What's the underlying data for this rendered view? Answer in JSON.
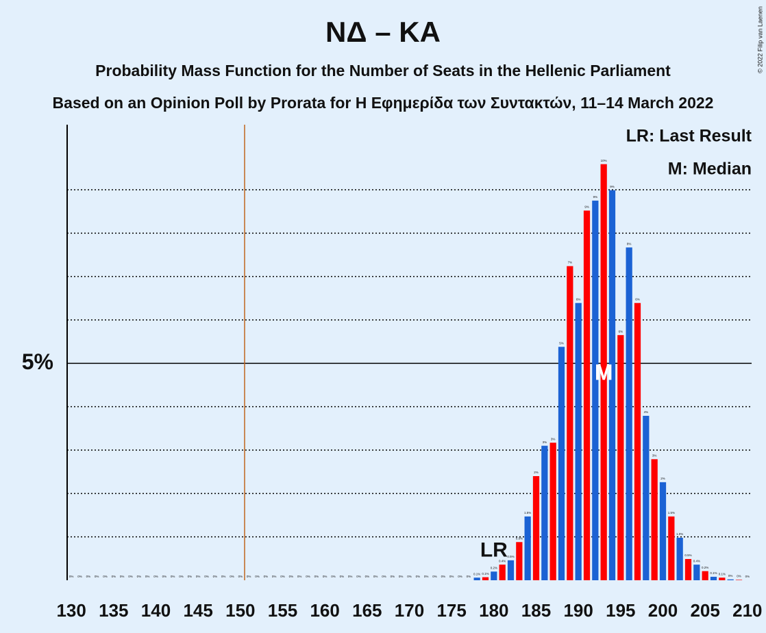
{
  "chart_data": {
    "type": "bar",
    "title": "ΝΔ – ΚΑ",
    "subtitle": "Probability Mass Function for the Number of Seats in the Hellenic Parliament",
    "subtitle2": "Based on an Opinion Poll by Prorata for Η Εφημερίδα των Συντακτών, 11–14 March 2022",
    "copyright": "© 2022 Filip van Laenen",
    "legend": [
      "LR: Last Result",
      "M: Median"
    ],
    "x": [
      130,
      131,
      132,
      133,
      134,
      135,
      136,
      137,
      138,
      139,
      140,
      141,
      142,
      143,
      144,
      145,
      146,
      147,
      148,
      149,
      150,
      151,
      152,
      153,
      154,
      155,
      156,
      157,
      158,
      159,
      160,
      161,
      162,
      163,
      164,
      165,
      166,
      167,
      168,
      169,
      170,
      171,
      172,
      173,
      174,
      175,
      176,
      177,
      178,
      179,
      180,
      181,
      182,
      183,
      184,
      185,
      186,
      187,
      188,
      189,
      190,
      191,
      192,
      193,
      194,
      195,
      196,
      197,
      198,
      199,
      200,
      201,
      202,
      203,
      204,
      205,
      206,
      207,
      208,
      209,
      210
    ],
    "values": [
      0,
      0,
      0,
      0,
      0,
      0,
      0,
      0,
      0,
      0,
      0,
      0,
      0,
      0,
      0,
      0,
      0,
      0,
      0,
      0,
      0,
      0,
      0,
      0,
      0,
      0,
      0,
      0,
      0,
      0,
      0,
      0,
      0,
      0,
      0,
      0,
      0,
      0,
      0,
      0,
      0,
      0,
      0,
      0,
      0,
      0,
      0,
      0,
      0.06,
      0.07,
      0.2,
      0.36,
      0.46,
      0.88,
      1.47,
      2.4,
      3.1,
      3.17,
      5.38,
      7.24,
      6.39,
      8.52,
      8.75,
      9.59,
      8.99,
      5.65,
      7.67,
      6.39,
      3.79,
      2.79,
      2.26,
      1.47,
      0.98,
      0.49,
      0.36,
      0.21,
      0.08,
      0.06,
      0.02,
      0.01,
      0
    ],
    "value_labels": [
      "0%",
      "0%",
      "0%",
      "0%",
      "0%",
      "0%",
      "0%",
      "0%",
      "0%",
      "0%",
      "0%",
      "0%",
      "0%",
      "0%",
      "0%",
      "0%",
      "0%",
      "0%",
      "0%",
      "0%",
      "0%",
      "0%",
      "0%",
      "0%",
      "0%",
      "0%",
      "0%",
      "0%",
      "0%",
      "0%",
      "0%",
      "0%",
      "0%",
      "0%",
      "0%",
      "0%",
      "0%",
      "0%",
      "0%",
      "0%",
      "0%",
      "0%",
      "0%",
      "0%",
      "0%",
      "0%",
      "0%",
      "0%",
      "0.1%",
      "0.1%",
      "0.2%",
      "0.4%",
      "0.5%",
      "0.9%",
      "1.5%",
      "2%",
      "3%",
      "3%",
      "5%",
      "7%",
      "6%",
      "9%",
      "9%",
      "10%",
      "9%",
      "6%",
      "8%",
      "6%",
      "4%",
      "3%",
      "2%",
      "1.5%",
      "1.0%",
      "0.5%",
      "0.4%",
      "0.2%",
      "0.1%",
      "0.1%",
      "0%",
      "0%",
      "0%"
    ],
    "colors": [
      "#1b62d4",
      "#ff0000",
      "#1b62d4",
      "#ff0000",
      "#1b62d4",
      "#ff0000",
      "#1b62d4",
      "#ff0000",
      "#1b62d4",
      "#ff0000",
      "#1b62d4",
      "#ff0000",
      "#1b62d4",
      "#ff0000",
      "#1b62d4",
      "#ff0000",
      "#1b62d4",
      "#ff0000",
      "#1b62d4",
      "#ff0000",
      "#1b62d4",
      "#ff0000",
      "#1b62d4",
      "#ff0000",
      "#1b62d4",
      "#ff0000",
      "#1b62d4",
      "#ff0000",
      "#1b62d4",
      "#ff0000",
      "#1b62d4",
      "#ff0000",
      "#1b62d4",
      "#ff0000",
      "#1b62d4",
      "#ff0000",
      "#1b62d4",
      "#ff0000",
      "#1b62d4",
      "#ff0000",
      "#1b62d4",
      "#ff0000",
      "#1b62d4",
      "#ff0000",
      "#1b62d4",
      "#ff0000",
      "#1b62d4",
      "#ff0000",
      "#1b62d4",
      "#ff0000",
      "#1b62d4",
      "#ff0000",
      "#1b62d4",
      "#ff0000",
      "#1b62d4",
      "#ff0000",
      "#1b62d4",
      "#ff0000",
      "#1b62d4",
      "#ff0000",
      "#1b62d4",
      "#ff0000",
      "#1b62d4",
      "#ff0000",
      "#1b62d4",
      "#ff0000",
      "#1b62d4",
      "#ff0000",
      "#1b62d4",
      "#ff0000",
      "#1b62d4",
      "#ff0000",
      "#1b62d4",
      "#ff0000",
      "#1b62d4",
      "#ff0000",
      "#1b62d4",
      "#ff0000",
      "#1b62d4",
      "#ff0000",
      "#1b62d4"
    ],
    "xlim": [
      129.5,
      210.5
    ],
    "xticks": [
      130,
      135,
      140,
      145,
      150,
      155,
      160,
      165,
      170,
      175,
      180,
      185,
      190,
      195,
      200,
      205,
      210
    ],
    "ylim": [
      0,
      10.5
    ],
    "yticks": [
      {
        "value": 5,
        "label": "5%"
      }
    ],
    "minor_yticks": [
      1,
      2,
      3,
      4,
      6,
      7,
      8,
      9
    ],
    "majority_line": 150.5,
    "last_result": {
      "text": "LR",
      "x": 180
    },
    "median": {
      "text": "M",
      "x": 193
    }
  }
}
